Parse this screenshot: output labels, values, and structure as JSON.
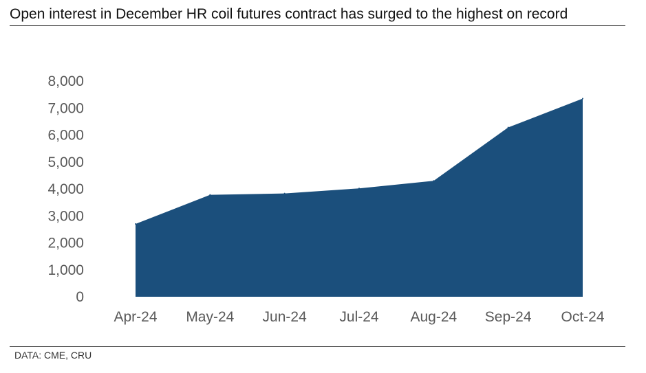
{
  "header": {
    "title": "Open interest in December HR coil futures contract has surged to the highest on record"
  },
  "footer": {
    "source": "DATA: CME, CRU"
  },
  "chart_data": {
    "type": "area",
    "title": "Open interest in December HR coil futures contract has surged to the highest on record",
    "xlabel": "",
    "ylabel": "",
    "categories": [
      "Apr-24",
      "May-24",
      "Jun-24",
      "Jul-24",
      "Aug-24",
      "Sep-24",
      "Oct-24"
    ],
    "series": [
      {
        "values": [
          2700,
          3780,
          3830,
          4020,
          4300,
          6280,
          7350
        ]
      }
    ],
    "ylim": [
      0,
      8000
    ],
    "yticks": [
      0,
      1000,
      2000,
      3000,
      4000,
      5000,
      6000,
      7000,
      8000
    ],
    "ytick_labels": [
      "0",
      "1,000",
      "2,000",
      "3,000",
      "4,000",
      "5,000",
      "6,000",
      "7,000",
      "8,000"
    ],
    "grid": false,
    "legend": "none",
    "colors": {
      "area": "#1b4f7c"
    }
  }
}
